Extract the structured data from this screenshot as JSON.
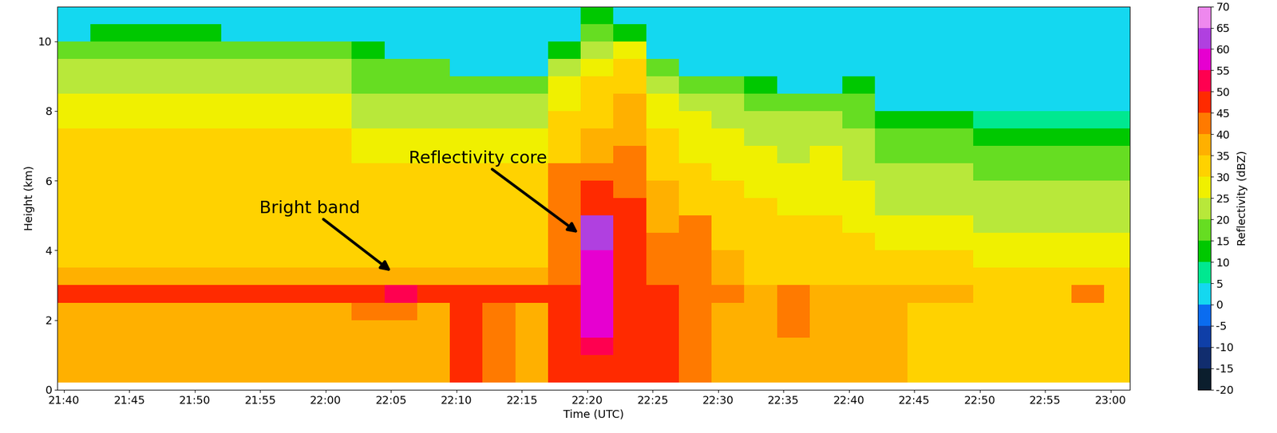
{
  "chart_data": {
    "type": "heatmap",
    "xlabel": "Time (UTC)",
    "ylabel": "Height (km)",
    "xlim": [
      1299.5,
      1381.5
    ],
    "ylim": [
      0,
      11
    ],
    "xticks": [
      {
        "value": 1300,
        "label": "21:40"
      },
      {
        "value": 1305,
        "label": "21:45"
      },
      {
        "value": 1310,
        "label": "21:50"
      },
      {
        "value": 1315,
        "label": "21:55"
      },
      {
        "value": 1320,
        "label": "22:00"
      },
      {
        "value": 1325,
        "label": "22:05"
      },
      {
        "value": 1330,
        "label": "22:10"
      },
      {
        "value": 1335,
        "label": "22:15"
      },
      {
        "value": 1340,
        "label": "22:20"
      },
      {
        "value": 1345,
        "label": "22:25"
      },
      {
        "value": 1350,
        "label": "22:30"
      },
      {
        "value": 1355,
        "label": "22:35"
      },
      {
        "value": 1360,
        "label": "22:40"
      },
      {
        "value": 1365,
        "label": "22:45"
      },
      {
        "value": 1370,
        "label": "22:50"
      },
      {
        "value": 1375,
        "label": "22:55"
      },
      {
        "value": 1380,
        "label": "23:00"
      }
    ],
    "yticks": [
      0,
      2,
      4,
      6,
      8,
      10
    ],
    "x_edges": [
      1299.5,
      1302,
      1304.5,
      1307,
      1309.5,
      1312,
      1314.5,
      1317,
      1319.5,
      1322,
      1324.5,
      1327,
      1329.5,
      1332,
      1334.5,
      1337,
      1339.5,
      1342,
      1344.5,
      1347,
      1349.5,
      1352,
      1354.5,
      1357,
      1359.5,
      1362,
      1364.5,
      1367,
      1369.5,
      1372,
      1374.5,
      1377,
      1379.5,
      1382
    ],
    "y_edges": [
      0.2,
      1.0,
      1.5,
      2.0,
      2.5,
      3.0,
      3.5,
      4.0,
      4.5,
      5.0,
      5.5,
      6.0,
      6.5,
      7.0,
      7.5,
      8.0,
      8.5,
      9.0,
      9.5,
      10.0,
      10.5,
      11.0
    ],
    "cells": [
      [
        37,
        37,
        37,
        37,
        37,
        37,
        37,
        37,
        37,
        37,
        37,
        37,
        47,
        42,
        37,
        47,
        47,
        47,
        47,
        42,
        37,
        37,
        37,
        37,
        37,
        37,
        32,
        32,
        32,
        32,
        32,
        32,
        32
      ],
      [
        37,
        37,
        37,
        37,
        37,
        37,
        37,
        37,
        37,
        37,
        37,
        37,
        47,
        42,
        37,
        47,
        52,
        47,
        47,
        42,
        37,
        37,
        37,
        37,
        37,
        37,
        32,
        32,
        32,
        32,
        32,
        32,
        32
      ],
      [
        37,
        37,
        37,
        37,
        37,
        37,
        37,
        37,
        37,
        37,
        37,
        37,
        47,
        42,
        37,
        47,
        57,
        47,
        47,
        42,
        37,
        37,
        42,
        37,
        37,
        37,
        32,
        32,
        32,
        32,
        32,
        32,
        32
      ],
      [
        37,
        37,
        37,
        37,
        37,
        37,
        37,
        37,
        37,
        42,
        42,
        37,
        47,
        42,
        37,
        47,
        57,
        47,
        47,
        42,
        37,
        37,
        42,
        37,
        37,
        37,
        32,
        32,
        32,
        32,
        32,
        32,
        32
      ],
      [
        47,
        47,
        47,
        47,
        47,
        47,
        47,
        47,
        47,
        47,
        52,
        47,
        47,
        47,
        47,
        47,
        57,
        47,
        47,
        42,
        42,
        37,
        42,
        37,
        37,
        37,
        37,
        37,
        32,
        32,
        32,
        42,
        32
      ],
      [
        37,
        37,
        37,
        37,
        37,
        37,
        37,
        37,
        37,
        37,
        37,
        37,
        37,
        37,
        37,
        42,
        57,
        47,
        42,
        42,
        37,
        32,
        32,
        32,
        32,
        32,
        32,
        32,
        32,
        32,
        32,
        32,
        32
      ],
      [
        32,
        32,
        32,
        32,
        32,
        32,
        32,
        32,
        32,
        32,
        32,
        32,
        32,
        32,
        32,
        42,
        57,
        47,
        42,
        42,
        37,
        32,
        32,
        32,
        32,
        32,
        32,
        32,
        27,
        27,
        27,
        27,
        27
      ],
      [
        32,
        32,
        32,
        32,
        32,
        32,
        32,
        32,
        32,
        32,
        32,
        32,
        32,
        32,
        32,
        42,
        62,
        47,
        42,
        42,
        32,
        32,
        32,
        32,
        32,
        27,
        27,
        27,
        27,
        27,
        27,
        27,
        27
      ],
      [
        32,
        32,
        32,
        32,
        32,
        32,
        32,
        32,
        32,
        32,
        32,
        32,
        32,
        32,
        32,
        42,
        62,
        47,
        37,
        42,
        32,
        32,
        32,
        32,
        27,
        27,
        27,
        27,
        22,
        22,
        22,
        22,
        22
      ],
      [
        32,
        32,
        32,
        32,
        32,
        32,
        32,
        32,
        32,
        32,
        32,
        32,
        32,
        32,
        32,
        42,
        47,
        47,
        37,
        32,
        32,
        32,
        27,
        27,
        27,
        22,
        22,
        22,
        22,
        22,
        22,
        22,
        22
      ],
      [
        32,
        32,
        32,
        32,
        32,
        32,
        32,
        32,
        32,
        32,
        32,
        32,
        32,
        32,
        32,
        42,
        47,
        42,
        37,
        32,
        32,
        27,
        27,
        27,
        27,
        22,
        22,
        22,
        22,
        22,
        22,
        22,
        22
      ],
      [
        32,
        32,
        32,
        32,
        32,
        32,
        32,
        32,
        32,
        32,
        32,
        32,
        32,
        32,
        32,
        42,
        42,
        42,
        32,
        32,
        27,
        27,
        27,
        27,
        22,
        22,
        22,
        22,
        17,
        17,
        17,
        17,
        17
      ],
      [
        32,
        32,
        32,
        32,
        32,
        32,
        32,
        32,
        32,
        27,
        27,
        27,
        27,
        27,
        27,
        32,
        37,
        42,
        32,
        27,
        27,
        27,
        22,
        27,
        22,
        17,
        17,
        17,
        17,
        17,
        17,
        17,
        17
      ],
      [
        32,
        32,
        32,
        32,
        32,
        32,
        32,
        32,
        32,
        27,
        27,
        27,
        27,
        27,
        27,
        32,
        37,
        37,
        32,
        27,
        27,
        22,
        22,
        22,
        22,
        17,
        17,
        17,
        12,
        12,
        12,
        12,
        12
      ],
      [
        27,
        27,
        27,
        27,
        27,
        27,
        27,
        27,
        27,
        22,
        22,
        22,
        22,
        22,
        22,
        32,
        32,
        37,
        27,
        27,
        22,
        22,
        22,
        22,
        17,
        12,
        12,
        12,
        7,
        7,
        7,
        7,
        7
      ],
      [
        27,
        27,
        27,
        27,
        27,
        27,
        27,
        27,
        27,
        22,
        22,
        22,
        22,
        22,
        22,
        27,
        32,
        37,
        27,
        22,
        22,
        17,
        17,
        17,
        17,
        2,
        2,
        2,
        2,
        2,
        2,
        2,
        2
      ],
      [
        22,
        22,
        22,
        22,
        22,
        22,
        22,
        22,
        22,
        17,
        17,
        17,
        17,
        17,
        17,
        27,
        32,
        32,
        22,
        17,
        17,
        12,
        2,
        2,
        12,
        2,
        2,
        2,
        2,
        2,
        2,
        2,
        2
      ],
      [
        22,
        22,
        22,
        22,
        22,
        22,
        22,
        22,
        22,
        17,
        17,
        17,
        2,
        2,
        2,
        22,
        27,
        32,
        17,
        2,
        2,
        2,
        2,
        2,
        2,
        2,
        2,
        2,
        2,
        2,
        2,
        2,
        2
      ],
      [
        17,
        17,
        17,
        17,
        17,
        17,
        17,
        17,
        17,
        12,
        2,
        2,
        2,
        2,
        2,
        12,
        22,
        27,
        2,
        2,
        2,
        2,
        2,
        2,
        2,
        2,
        2,
        2,
        2,
        2,
        2,
        2,
        2
      ],
      [
        2,
        12,
        12,
        12,
        12,
        2,
        2,
        2,
        2,
        2,
        2,
        2,
        2,
        2,
        2,
        2,
        17,
        12,
        2,
        2,
        2,
        2,
        2,
        2,
        2,
        2,
        2,
        2,
        2,
        2,
        2,
        2,
        2
      ],
      [
        2,
        2,
        2,
        2,
        2,
        2,
        2,
        2,
        2,
        2,
        2,
        2,
        2,
        2,
        2,
        2,
        12,
        2,
        2,
        2,
        2,
        2,
        2,
        2,
        2,
        2,
        2,
        2,
        2,
        2,
        2,
        2,
        2
      ]
    ],
    "colorbar": {
      "label": "Reflectivity (dBZ)",
      "range": [
        -20,
        70
      ],
      "ticks": [
        -20,
        -15,
        -10,
        -5,
        0,
        5,
        10,
        15,
        20,
        25,
        30,
        35,
        40,
        45,
        50,
        55,
        60,
        65,
        70
      ],
      "colors": [
        "#0b1e2d",
        "#112d6e",
        "#0f3fa8",
        "#0a6cf0",
        "#14d8f0",
        "#00e890",
        "#00c800",
        "#66dd22",
        "#b8e83a",
        "#f0f000",
        "#ffd200",
        "#ffb000",
        "#ff7a00",
        "#ff2a00",
        "#ff0050",
        "#e600d0",
        "#b040e0",
        "#ee88ee"
      ]
    },
    "annotations": [
      {
        "text": "Bright band",
        "x": 1325,
        "y": 3.4
      },
      {
        "text": "Reflectivity core",
        "x": 1339.3,
        "y": 4.5
      }
    ]
  }
}
